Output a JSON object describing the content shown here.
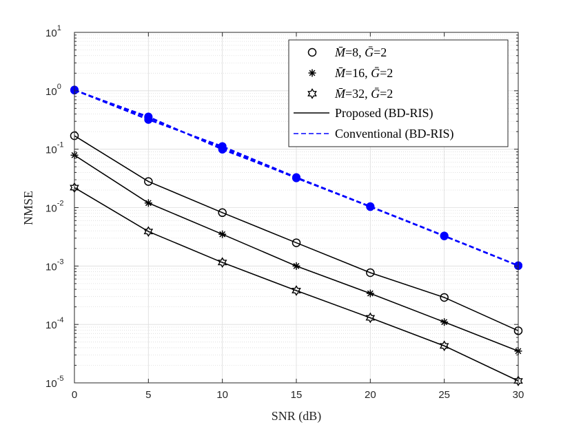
{
  "chart_data": {
    "type": "line",
    "xlabel": "SNR (dB)",
    "ylabel": "NMSE",
    "x": [
      0,
      5,
      10,
      15,
      20,
      25,
      30
    ],
    "xlim": [
      0,
      30
    ],
    "ylim": [
      1e-05,
      10
    ],
    "yscale": "log",
    "grid": true,
    "legend_position": "top-right",
    "x_ticks": [
      "0",
      "5",
      "10",
      "15",
      "20",
      "25",
      "30"
    ],
    "y_ticks": [
      {
        "base": "10",
        "exp": "-5"
      },
      {
        "base": "10",
        "exp": "-4"
      },
      {
        "base": "10",
        "exp": "-3"
      },
      {
        "base": "10",
        "exp": "-2"
      },
      {
        "base": "10",
        "exp": "-1"
      },
      {
        "base": "10",
        "exp": "0"
      },
      {
        "base": "10",
        "exp": "1"
      }
    ],
    "series": [
      {
        "name": "Proposed M=8",
        "method": "proposed",
        "marker": "circle",
        "color": "#000000",
        "values": [
          0.17,
          0.028,
          0.0082,
          0.0025,
          0.00077,
          0.00029,
          7.8e-05
        ]
      },
      {
        "name": "Proposed M=16",
        "method": "proposed",
        "marker": "asterisk",
        "color": "#000000",
        "values": [
          0.079,
          0.012,
          0.0035,
          0.001,
          0.00034,
          0.00011,
          3.5e-05
        ]
      },
      {
        "name": "Proposed M=32",
        "method": "proposed",
        "marker": "hexagram",
        "color": "#000000",
        "values": [
          0.022,
          0.0039,
          0.00115,
          0.00038,
          0.00013,
          4.3e-05,
          1.08e-05
        ]
      },
      {
        "name": "Conventional M=8",
        "method": "conventional",
        "marker": "circle",
        "color": "#0000ff",
        "values": [
          1.03,
          0.32,
          0.112,
          0.033,
          0.0105,
          0.0033,
          0.00102
        ]
      },
      {
        "name": "Conventional M=16",
        "method": "conventional",
        "marker": "asterisk",
        "color": "#0000ff",
        "values": [
          1.02,
          0.36,
          0.099,
          0.0325,
          0.0103,
          0.00325,
          0.00101
        ]
      },
      {
        "name": "Conventional M=32",
        "method": "conventional",
        "marker": "hexagram",
        "color": "#0000ff",
        "values": [
          1.04,
          0.345,
          0.105,
          0.032,
          0.0104,
          0.00328,
          0.00102
        ]
      }
    ],
    "legend": [
      {
        "marker": "circle",
        "m_symbol": "M̄",
        "m_value": "=8, ",
        "g_symbol": "Ḡ",
        "g_value": "=2"
      },
      {
        "marker": "asterisk",
        "m_symbol": "M̄",
        "m_value": "=16, ",
        "g_symbol": "Ḡ",
        "g_value": "=2"
      },
      {
        "marker": "hexagram",
        "m_symbol": "M̄",
        "m_value": "=32, ",
        "g_symbol": "Ḡ",
        "g_value": "=2"
      },
      {
        "line": "solid",
        "color": "#000000",
        "label": "Proposed (BD-RIS)"
      },
      {
        "line": "dashed",
        "color": "#0000ff",
        "label": "Conventional (BD-RIS)"
      }
    ]
  }
}
